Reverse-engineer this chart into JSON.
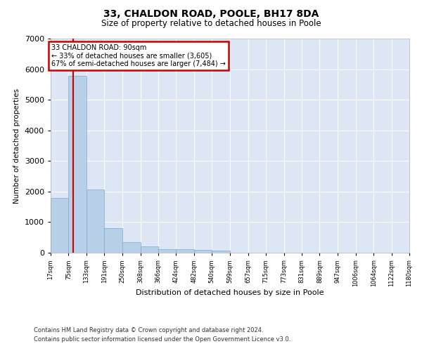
{
  "title": "33, CHALDON ROAD, POOLE, BH17 8DA",
  "subtitle": "Size of property relative to detached houses in Poole",
  "xlabel": "Distribution of detached houses by size in Poole",
  "ylabel": "Number of detached properties",
  "bar_color": "#b8cfe8",
  "bar_edge_color": "#7aaad0",
  "background_color": "#dce6f5",
  "grid_color": "#ffffff",
  "bins": [
    17,
    75,
    133,
    191,
    250,
    308,
    366,
    424,
    482,
    540,
    599,
    657,
    715,
    773,
    831,
    889,
    947,
    1006,
    1064,
    1122,
    1180
  ],
  "bin_labels": [
    "17sqm",
    "75sqm",
    "133sqm",
    "191sqm",
    "250sqm",
    "308sqm",
    "366sqm",
    "424sqm",
    "482sqm",
    "540sqm",
    "599sqm",
    "657sqm",
    "715sqm",
    "773sqm",
    "831sqm",
    "889sqm",
    "947sqm",
    "1006sqm",
    "1064sqm",
    "1122sqm",
    "1180sqm"
  ],
  "values": [
    1780,
    5780,
    2060,
    800,
    340,
    200,
    120,
    110,
    100,
    80,
    0,
    0,
    0,
    0,
    0,
    0,
    0,
    0,
    0,
    0
  ],
  "ylim": [
    0,
    7000
  ],
  "yticks": [
    0,
    1000,
    2000,
    3000,
    4000,
    5000,
    6000,
    7000
  ],
  "property_label": "33 CHALDON ROAD: 90sqm",
  "pct_smaller": "33% of detached houses are smaller (3,605)",
  "pct_larger": "67% of semi-detached houses are larger (7,484)",
  "vline_x": 90,
  "annotation_box_facecolor": "#ffffff",
  "annotation_border_color": "#cc0000",
  "footer_line1": "Contains HM Land Registry data © Crown copyright and database right 2024.",
  "footer_line2": "Contains public sector information licensed under the Open Government Licence v3.0."
}
